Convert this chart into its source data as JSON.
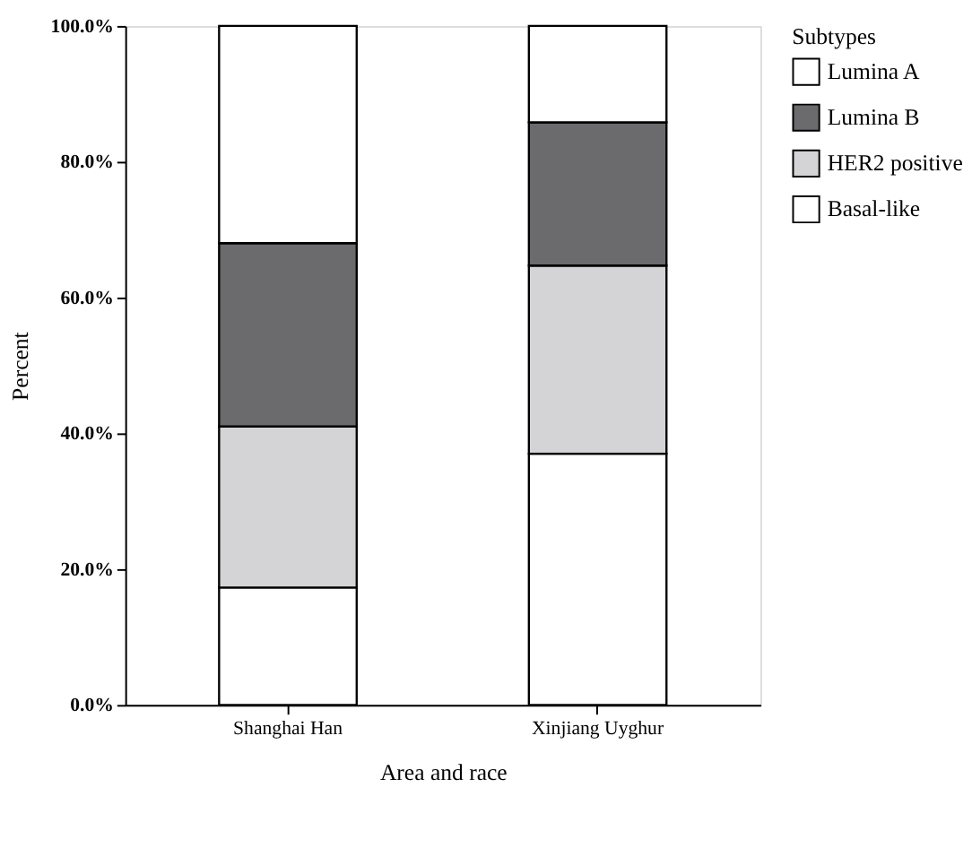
{
  "chart_data": {
    "type": "bar",
    "stacked": true,
    "xlabel": "Area and race",
    "ylabel": "Percent",
    "legend_title": "Subtypes",
    "legend": "top right",
    "grid": false,
    "categories": [
      "Shanghai Han",
      "Xinjiang Uyghur"
    ],
    "series": [
      {
        "name": "Basal-like",
        "color": "#ffffff",
        "values": [
          17.3,
          37.0
        ]
      },
      {
        "name": "HER2 positive",
        "color": "#d4d4d6",
        "values": [
          23.7,
          27.7
        ]
      },
      {
        "name": "Lumina B",
        "color": "#6b6b6e",
        "values": [
          27.0,
          21.1
        ]
      },
      {
        "name": "Lumina A",
        "color": "#ffffff",
        "values": [
          32.0,
          14.2
        ]
      }
    ],
    "ylim": [
      0,
      100
    ],
    "yticks": [
      {
        "value": 0,
        "label": "0.0%"
      },
      {
        "value": 20,
        "label": "20.0%"
      },
      {
        "value": 40,
        "label": "40.0%"
      },
      {
        "value": 60,
        "label": "60.0%"
      },
      {
        "value": 80,
        "label": "80.0%"
      },
      {
        "value": 100,
        "label": "100.0%"
      }
    ]
  }
}
